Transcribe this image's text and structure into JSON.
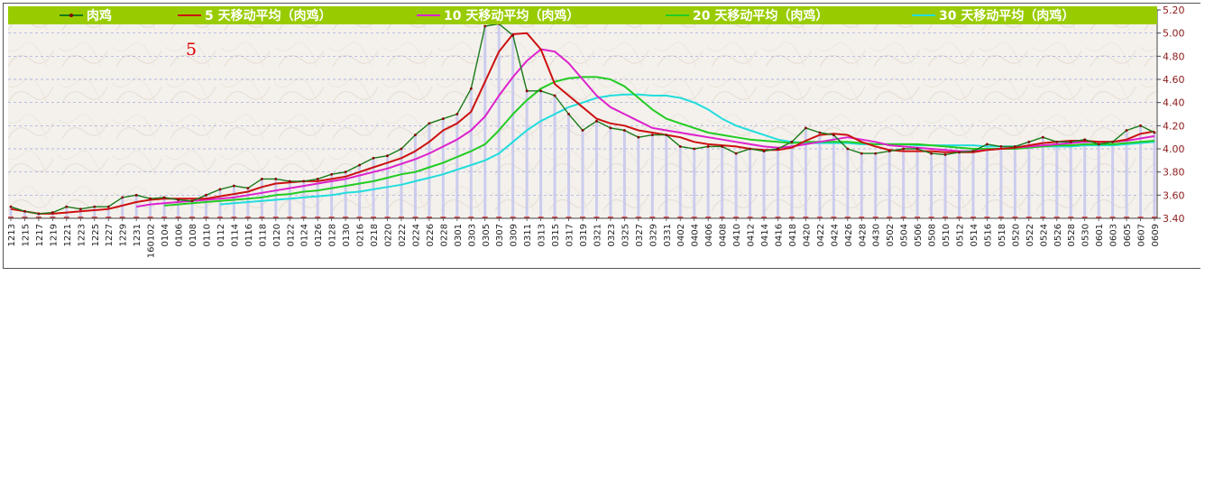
{
  "chart_data": {
    "type": "line",
    "title": "",
    "xlabel": "",
    "ylabel": "",
    "ylim": [
      3.4,
      5.2
    ],
    "y_ticks": [
      "3.40",
      "3.60",
      "3.80",
      "4.00",
      "4.20",
      "4.40",
      "4.60",
      "4.80",
      "5.00",
      "5.20"
    ],
    "y_axis_side": "right",
    "grid": true,
    "legend_position": "top",
    "annotation": "5",
    "x_labels": [
      "1213",
      "1215",
      "1217",
      "1219",
      "1221",
      "1223",
      "1225",
      "1227",
      "1229",
      "1231",
      "160102",
      "0104",
      "0106",
      "0108",
      "0110",
      "0112",
      "0114",
      "0116",
      "0118",
      "0120",
      "0122",
      "0124",
      "0126",
      "0128",
      "0130",
      "0216",
      "0218",
      "0220",
      "0222",
      "0224",
      "0226",
      "0228",
      "0301",
      "0303",
      "0305",
      "0307",
      "0309",
      "0311",
      "0313",
      "0315",
      "0317",
      "0319",
      "0321",
      "0323",
      "0325",
      "0327",
      "0329",
      "0331",
      "0402",
      "0404",
      "0406",
      "0408",
      "0410",
      "0412",
      "0414",
      "0416",
      "0418",
      "0420",
      "0422",
      "0424",
      "0426",
      "0428",
      "0430",
      "0502",
      "0504",
      "0506",
      "0508",
      "0510",
      "0512",
      "0514",
      "0516",
      "0518",
      "0520",
      "0522",
      "0524",
      "0526",
      "0528",
      "0530",
      "0601",
      "0603",
      "0605",
      "0607",
      "0609"
    ],
    "series": [
      {
        "name": "肉鸡",
        "color": "#1a7a1a",
        "dot_color": "#8b0000",
        "bars": true,
        "values": [
          3.5,
          3.46,
          3.44,
          3.45,
          3.5,
          3.48,
          3.5,
          3.5,
          3.58,
          3.6,
          3.57,
          3.58,
          3.56,
          3.55,
          3.6,
          3.65,
          3.68,
          3.66,
          3.74,
          3.74,
          3.72,
          3.72,
          3.74,
          3.78,
          3.8,
          3.86,
          3.92,
          3.94,
          4.0,
          4.12,
          4.22,
          4.26,
          4.3,
          4.52,
          5.06,
          5.08,
          4.98,
          4.5,
          4.5,
          4.46,
          4.3,
          4.16,
          4.24,
          4.18,
          4.16,
          4.1,
          4.12,
          4.12,
          4.02,
          4.0,
          4.02,
          4.02,
          3.96,
          4.0,
          3.98,
          4.0,
          4.06,
          4.18,
          4.14,
          4.12,
          4.0,
          3.96,
          3.96,
          3.98,
          4.0,
          4.0,
          3.96,
          3.95,
          3.97,
          3.98,
          4.04,
          4.02,
          4.02,
          4.06,
          4.1,
          4.06,
          4.06,
          4.08,
          4.04,
          4.06,
          4.16,
          4.2,
          4.14
        ]
      },
      {
        "name": "5 天移动平均（肉鸡）",
        "color": "#cc1111",
        "values": [
          3.48,
          3.46,
          3.44,
          3.44,
          3.45,
          3.46,
          3.47,
          3.48,
          3.51,
          3.54,
          3.56,
          3.57,
          3.57,
          3.57,
          3.57,
          3.59,
          3.61,
          3.63,
          3.67,
          3.7,
          3.71,
          3.72,
          3.72,
          3.74,
          3.76,
          3.8,
          3.84,
          3.88,
          3.92,
          3.98,
          4.06,
          4.16,
          4.22,
          4.32,
          4.58,
          4.84,
          4.99,
          5.0,
          4.86,
          4.56,
          4.46,
          4.36,
          4.26,
          4.22,
          4.2,
          4.16,
          4.14,
          4.12,
          4.1,
          4.06,
          4.04,
          4.03,
          4.02,
          4.0,
          3.99,
          3.99,
          4.01,
          4.07,
          4.12,
          4.13,
          4.12,
          4.06,
          4.02,
          3.99,
          3.98,
          3.98,
          3.98,
          3.97,
          3.97,
          3.97,
          3.99,
          4.0,
          4.01,
          4.03,
          4.05,
          4.06,
          4.07,
          4.07,
          4.06,
          4.06,
          4.08,
          4.13,
          4.15
        ]
      },
      {
        "name": "10 天移动平均（肉鸡）",
        "color": "#dd22cc",
        "values": [
          null,
          null,
          null,
          null,
          null,
          null,
          null,
          null,
          null,
          3.5,
          3.52,
          3.53,
          3.54,
          3.55,
          3.56,
          3.57,
          3.58,
          3.6,
          3.62,
          3.64,
          3.66,
          3.68,
          3.7,
          3.72,
          3.74,
          3.77,
          3.8,
          3.83,
          3.87,
          3.91,
          3.96,
          4.02,
          4.08,
          4.16,
          4.28,
          4.46,
          4.62,
          4.76,
          4.86,
          4.84,
          4.74,
          4.6,
          4.46,
          4.36,
          4.3,
          4.24,
          4.18,
          4.16,
          4.14,
          4.12,
          4.1,
          4.08,
          4.06,
          4.04,
          4.02,
          4.01,
          4.02,
          4.04,
          4.06,
          4.08,
          4.1,
          4.08,
          4.06,
          4.03,
          4.02,
          4.01,
          4.0,
          3.99,
          3.98,
          3.98,
          3.99,
          4.0,
          4.01,
          4.02,
          4.03,
          4.04,
          4.05,
          4.06,
          4.06,
          4.06,
          4.07,
          4.09,
          4.11
        ]
      },
      {
        "name": "20 天移动平均（肉鸡）",
        "color": "#22cc22",
        "values": [
          null,
          null,
          null,
          null,
          null,
          null,
          null,
          null,
          null,
          null,
          null,
          3.51,
          3.52,
          3.53,
          3.54,
          3.55,
          3.56,
          3.57,
          3.58,
          3.6,
          3.61,
          3.63,
          3.64,
          3.66,
          3.68,
          3.7,
          3.72,
          3.75,
          3.78,
          3.8,
          3.84,
          3.88,
          3.93,
          3.98,
          4.04,
          4.16,
          4.3,
          4.42,
          4.52,
          4.58,
          4.61,
          4.62,
          4.62,
          4.6,
          4.54,
          4.44,
          4.34,
          4.26,
          4.22,
          4.18,
          4.14,
          4.12,
          4.1,
          4.08,
          4.07,
          4.06,
          4.05,
          4.06,
          4.06,
          4.06,
          4.06,
          4.05,
          4.04,
          4.04,
          4.04,
          4.04,
          4.03,
          4.02,
          4.01,
          4.0,
          4.0,
          4.0,
          4.0,
          4.01,
          4.02,
          4.03,
          4.03,
          4.04,
          4.04,
          4.04,
          4.05,
          4.06,
          4.07
        ]
      },
      {
        "name": "30 天移动平均（肉鸡）",
        "color": "#22dddd",
        "values": [
          null,
          null,
          null,
          null,
          null,
          null,
          null,
          null,
          null,
          null,
          null,
          null,
          null,
          null,
          null,
          3.52,
          3.53,
          3.54,
          3.55,
          3.56,
          3.57,
          3.58,
          3.59,
          3.6,
          3.62,
          3.63,
          3.65,
          3.67,
          3.69,
          3.72,
          3.75,
          3.78,
          3.82,
          3.86,
          3.9,
          3.96,
          4.06,
          4.16,
          4.24,
          4.3,
          4.36,
          4.4,
          4.44,
          4.46,
          4.47,
          4.47,
          4.46,
          4.46,
          4.44,
          4.4,
          4.34,
          4.26,
          4.2,
          4.16,
          4.12,
          4.08,
          4.06,
          4.05,
          4.05,
          4.05,
          4.05,
          4.04,
          4.04,
          4.04,
          4.04,
          4.03,
          4.03,
          4.03,
          4.03,
          4.03,
          4.02,
          4.02,
          4.02,
          4.02,
          4.02,
          4.02,
          4.02,
          4.03,
          4.03,
          4.03,
          4.04,
          4.05,
          4.06
        ]
      }
    ]
  }
}
